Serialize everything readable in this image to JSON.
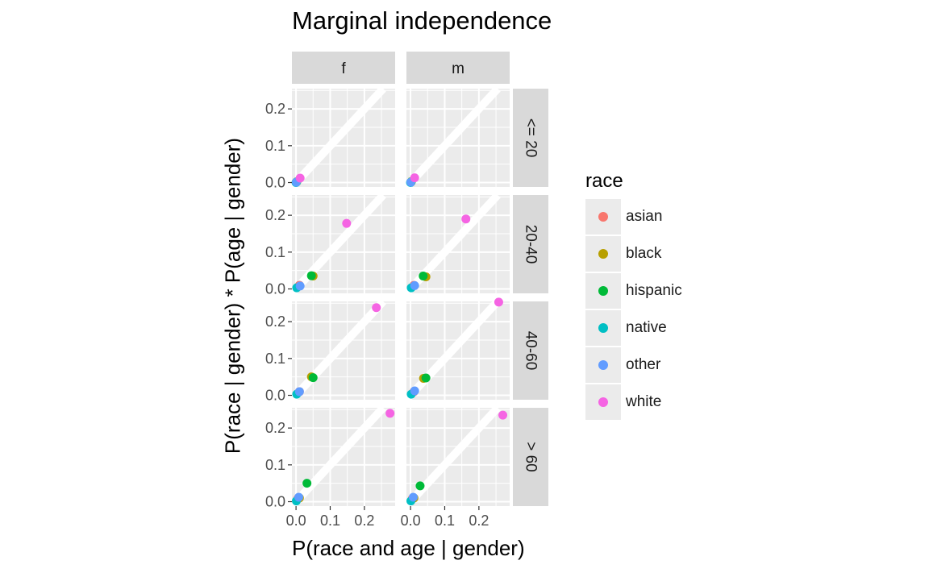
{
  "chart_data": {
    "type": "scatter",
    "title": "Marginal independence",
    "xlabel": "P(race and age | gender)",
    "ylabel": "P(race | gender) * P(age | gender)",
    "xlim": [
      -0.012,
      0.29
    ],
    "ylim": [
      -0.012,
      0.255
    ],
    "x_ticks": [
      0.0,
      0.1,
      0.2
    ],
    "x_tick_labels": [
      "0.0",
      "0.1",
      "0.2"
    ],
    "y_ticks": [
      0.0,
      0.1,
      0.2
    ],
    "y_tick_labels": [
      "0.0",
      "0.1",
      "0.2"
    ],
    "reference_line": "y = x",
    "facet_cols": [
      "f",
      "m"
    ],
    "facet_rows": [
      "<= 20",
      "20-40",
      "40-60",
      "> 60"
    ],
    "legend": {
      "title": "race",
      "items": [
        {
          "label": "asian",
          "color": "#F8766D"
        },
        {
          "label": "black",
          "color": "#B79F00"
        },
        {
          "label": "hispanic",
          "color": "#00BA38"
        },
        {
          "label": "native",
          "color": "#00BFC4"
        },
        {
          "label": "other",
          "color": "#619CFF"
        },
        {
          "label": "white",
          "color": "#F564E3"
        }
      ]
    },
    "panels": [
      {
        "col": "f",
        "row": "<= 20",
        "points": [
          {
            "race": "asian",
            "x": 0.001,
            "y": 0.001
          },
          {
            "race": "black",
            "x": 0.002,
            "y": 0.002
          },
          {
            "race": "hispanic",
            "x": 0.002,
            "y": 0.002
          },
          {
            "race": "native",
            "x": 0.0,
            "y": 0.0
          },
          {
            "race": "other",
            "x": 0.001,
            "y": 0.001
          },
          {
            "race": "white",
            "x": 0.012,
            "y": 0.012
          }
        ]
      },
      {
        "col": "m",
        "row": "<= 20",
        "points": [
          {
            "race": "asian",
            "x": 0.001,
            "y": 0.001
          },
          {
            "race": "black",
            "x": 0.002,
            "y": 0.002
          },
          {
            "race": "hispanic",
            "x": 0.002,
            "y": 0.002
          },
          {
            "race": "native",
            "x": 0.0,
            "y": 0.0
          },
          {
            "race": "other",
            "x": 0.001,
            "y": 0.001
          },
          {
            "race": "white",
            "x": 0.012,
            "y": 0.013
          }
        ]
      },
      {
        "col": "f",
        "row": "20-40",
        "points": [
          {
            "race": "asian",
            "x": 0.01,
            "y": 0.01
          },
          {
            "race": "black",
            "x": 0.05,
            "y": 0.035
          },
          {
            "race": "hispanic",
            "x": 0.045,
            "y": 0.036
          },
          {
            "race": "native",
            "x": 0.002,
            "y": 0.003
          },
          {
            "race": "other",
            "x": 0.012,
            "y": 0.008
          },
          {
            "race": "white",
            "x": 0.148,
            "y": 0.178
          }
        ]
      },
      {
        "col": "m",
        "row": "20-40",
        "points": [
          {
            "race": "asian",
            "x": 0.01,
            "y": 0.01
          },
          {
            "race": "black",
            "x": 0.045,
            "y": 0.033
          },
          {
            "race": "hispanic",
            "x": 0.037,
            "y": 0.035
          },
          {
            "race": "native",
            "x": 0.002,
            "y": 0.003
          },
          {
            "race": "other",
            "x": 0.012,
            "y": 0.009
          },
          {
            "race": "white",
            "x": 0.162,
            "y": 0.19
          }
        ]
      },
      {
        "col": "f",
        "row": "40-60",
        "points": [
          {
            "race": "asian",
            "x": 0.01,
            "y": 0.01
          },
          {
            "race": "black",
            "x": 0.045,
            "y": 0.05
          },
          {
            "race": "hispanic",
            "x": 0.05,
            "y": 0.048
          },
          {
            "race": "native",
            "x": 0.002,
            "y": 0.003
          },
          {
            "race": "other",
            "x": 0.01,
            "y": 0.01
          },
          {
            "race": "white",
            "x": 0.235,
            "y": 0.238
          }
        ]
      },
      {
        "col": "m",
        "row": "40-60",
        "points": [
          {
            "race": "asian",
            "x": 0.01,
            "y": 0.01
          },
          {
            "race": "black",
            "x": 0.038,
            "y": 0.046
          },
          {
            "race": "hispanic",
            "x": 0.045,
            "y": 0.047
          },
          {
            "race": "native",
            "x": 0.002,
            "y": 0.003
          },
          {
            "race": "other",
            "x": 0.012,
            "y": 0.012
          },
          {
            "race": "white",
            "x": 0.258,
            "y": 0.253
          }
        ]
      },
      {
        "col": "f",
        "row": "> 60",
        "points": [
          {
            "race": "asian",
            "x": 0.005,
            "y": 0.008
          },
          {
            "race": "black",
            "x": 0.01,
            "y": 0.01
          },
          {
            "race": "hispanic",
            "x": 0.032,
            "y": 0.05
          },
          {
            "race": "native",
            "x": 0.001,
            "y": 0.002
          },
          {
            "race": "other",
            "x": 0.008,
            "y": 0.012
          },
          {
            "race": "white",
            "x": 0.275,
            "y": 0.24
          }
        ]
      },
      {
        "col": "m",
        "row": "> 60",
        "points": [
          {
            "race": "asian",
            "x": 0.005,
            "y": 0.008
          },
          {
            "race": "black",
            "x": 0.01,
            "y": 0.01
          },
          {
            "race": "hispanic",
            "x": 0.028,
            "y": 0.043
          },
          {
            "race": "native",
            "x": 0.001,
            "y": 0.002
          },
          {
            "race": "other",
            "x": 0.008,
            "y": 0.012
          },
          {
            "race": "white",
            "x": 0.27,
            "y": 0.235
          }
        ]
      }
    ]
  }
}
